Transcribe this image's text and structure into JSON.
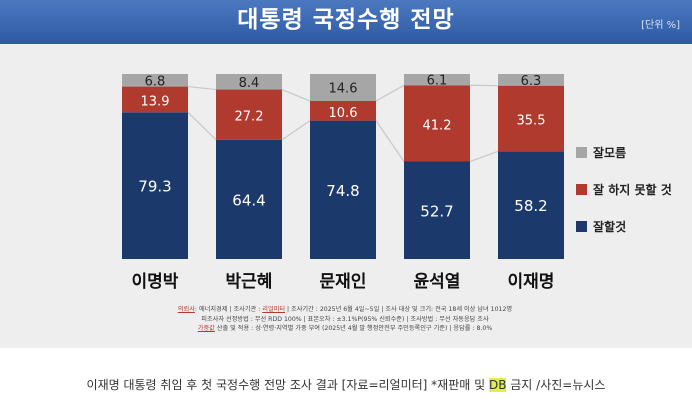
{
  "header": {
    "title": "대통령 국정수행 전망",
    "unit": "[단위 %]"
  },
  "colors": {
    "good": "#1b3a6b",
    "bad": "#b03a2e",
    "unknown": "#a6a6a6",
    "line": "#c8c8c8"
  },
  "chart_data": {
    "type": "bar",
    "stacked": true,
    "categories": [
      "이명박",
      "박근혜",
      "문재인",
      "윤석열",
      "이재명"
    ],
    "series": [
      {
        "name": "잘할것",
        "values": [
          79.3,
          64.4,
          74.8,
          52.7,
          58.2
        ]
      },
      {
        "name": "잘 하지 못할 것",
        "values": [
          13.9,
          27.2,
          10.6,
          41.2,
          35.5
        ]
      },
      {
        "name": "잘모름",
        "values": [
          6.8,
          8.4,
          14.6,
          6.1,
          6.3
        ]
      }
    ],
    "ylim": [
      0,
      100
    ],
    "legend_position": "right",
    "grid": false
  },
  "source": {
    "line1_prefix": "의뢰사",
    "line1_a": ": 에너지경제 | 조사기관 : ",
    "line1_agency": "리얼미터",
    "line1_b": " | 조사기간 : 2025년 6월 4일~5일 | 조사 대상 및 크기: 전국 18세 이상 남녀 1012명",
    "line2": "피조사자 선정방법 : 무선 RDD 100% | 표본오차 : ±3.1%P(95% 신뢰수준) | 조사방법 : 무선 자동응답 조사",
    "line3_prefix": "가중값",
    "line3_rest": " 산출 및 적용 : 성·연령·지역별 가중 부여 (2025년 4월 말 행정안전부 주민등록인구 기준) | 응답률 : 8.0%"
  },
  "caption": {
    "part1": "이재명 대통령 취임 후 첫 국정수행 전망 조사 결과 [자료=리얼미터] *재판매 및 ",
    "highlight": "DB",
    "part2": " 금지 /사진=뉴시스"
  }
}
